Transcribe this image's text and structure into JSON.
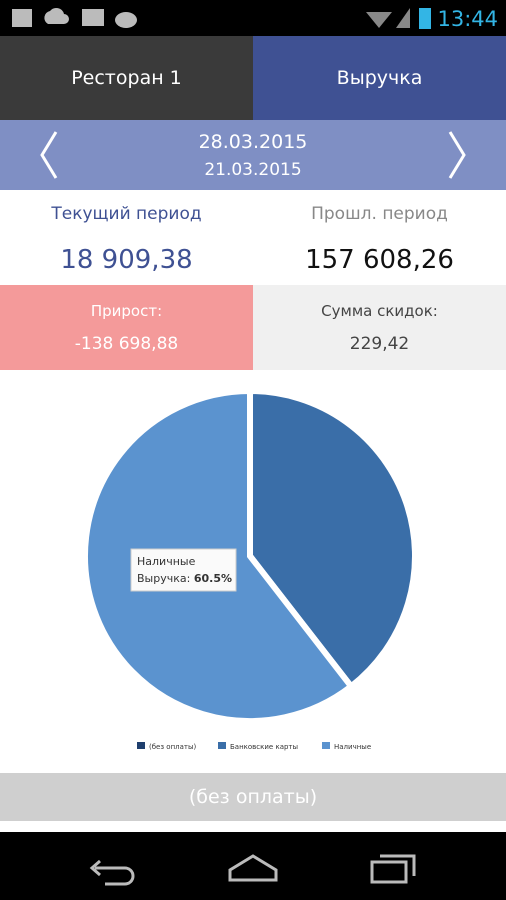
{
  "status_bar": {
    "time": "13:44"
  },
  "tabs": [
    "Ресторан 1",
    "Выручка"
  ],
  "period": {
    "current_date": "28.03.2015",
    "previous_date": "21.03.2015"
  },
  "stats": {
    "current_label": "Текущий период",
    "current_value": "18 909,38",
    "previous_label": "Прошл. период",
    "previous_value": "157 608,26",
    "growth_label": "Прирост:",
    "growth_value": "-138 698,88",
    "discount_label": "Сумма скидок:",
    "discount_value": "229,42"
  },
  "chart_data": {
    "type": "pie",
    "categories": [
      "(без оплаты)",
      "Банковские карты",
      "Наличные"
    ],
    "values": [
      0,
      39.5,
      60.5
    ],
    "value_labels": [
      null,
      null,
      "60.5%"
    ],
    "colors": [
      "#1f3f6e",
      "#3a6ea8",
      "#5b93cf"
    ],
    "tooltip_label": "Выручка:"
  },
  "selected_payment": "(без оплаты)"
}
